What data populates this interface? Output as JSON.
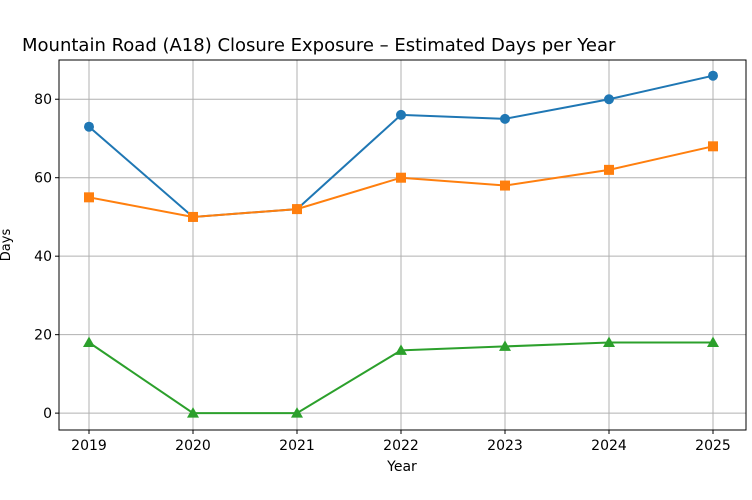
{
  "chart_data": {
    "type": "line",
    "title": "Mountain Road (A18) Closure Exposure – Estimated Days per Year",
    "xlabel": "Year",
    "ylabel": "Days",
    "categories": [
      "2019",
      "2020",
      "2021",
      "2022",
      "2023",
      "2024",
      "2025"
    ],
    "yticks": [
      "0",
      "20",
      "40",
      "60",
      "80"
    ],
    "ylim": [
      -4.3,
      90
    ],
    "grid": true,
    "series": [
      {
        "color": "#1f77b4",
        "marker": "circle",
        "values": [
          73,
          50,
          52,
          76,
          75,
          80,
          86
        ]
      },
      {
        "color": "#ff7f0e",
        "marker": "square",
        "values": [
          55,
          50,
          52,
          60,
          58,
          62,
          68
        ]
      },
      {
        "color": "#2ca02c",
        "marker": "triangle",
        "values": [
          18,
          0,
          0,
          16,
          17,
          18,
          18
        ]
      }
    ]
  }
}
